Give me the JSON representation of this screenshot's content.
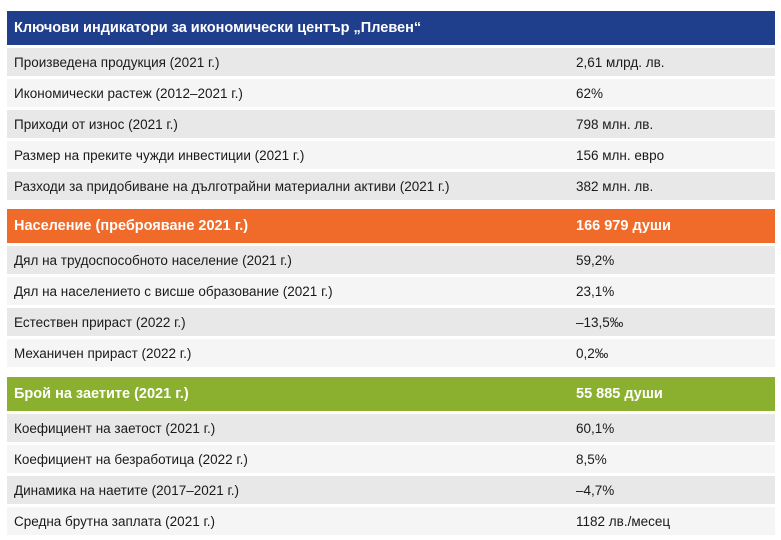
{
  "sections": [
    {
      "color": "#1f3f8c",
      "header": {
        "label": "Ключови индикатори за икономически център „Плевен“",
        "value": ""
      },
      "rows": [
        {
          "label": "Произведена продукция (2021 г.)",
          "value": "2,61 млрд. лв."
        },
        {
          "label": "Икономически растеж (2012–2021 г.)",
          "value": "62%"
        },
        {
          "label": "Приходи от износ (2021 г.)",
          "value": "798 млн. лв."
        },
        {
          "label": "Размер на преките чужди инвестиции (2021 г.)",
          "value": "156 млн. евро"
        },
        {
          "label": "Разходи за придобиване на дълготрайни материални активи (2021 г.)",
          "value": "382 млн. лв."
        }
      ]
    },
    {
      "color": "#f06a2a",
      "header": {
        "label": "Население (преброяване 2021 г.)",
        "value": "166 979 души"
      },
      "rows": [
        {
          "label": "Дял на трудоспособното население (2021 г.)",
          "value": "59,2%"
        },
        {
          "label": "Дял на населението с висше образование (2021 г.)",
          "value": "23,1%"
        },
        {
          "label": "Естествен прираст (2022 г.)",
          "value": "–13,5‰"
        },
        {
          "label": "Механичен прираст (2022 г.)",
          "value": "0,2‰"
        }
      ]
    },
    {
      "color": "#8bb030",
      "header": {
        "label": "Брой на заетите (2021 г.)",
        "value": "55 885 души"
      },
      "rows": [
        {
          "label": "Коефициент на заетост (2021 г.)",
          "value": "60,1%"
        },
        {
          "label": "Коефициент на безработица (2022 г.)",
          "value": "8,5%"
        },
        {
          "label": "Динамика на наетите (2017–2021 г.)",
          "value": "–4,7%"
        },
        {
          "label": "Средна брутна заплата (2021 г.)",
          "value": "1182 лв./месец"
        }
      ]
    }
  ]
}
